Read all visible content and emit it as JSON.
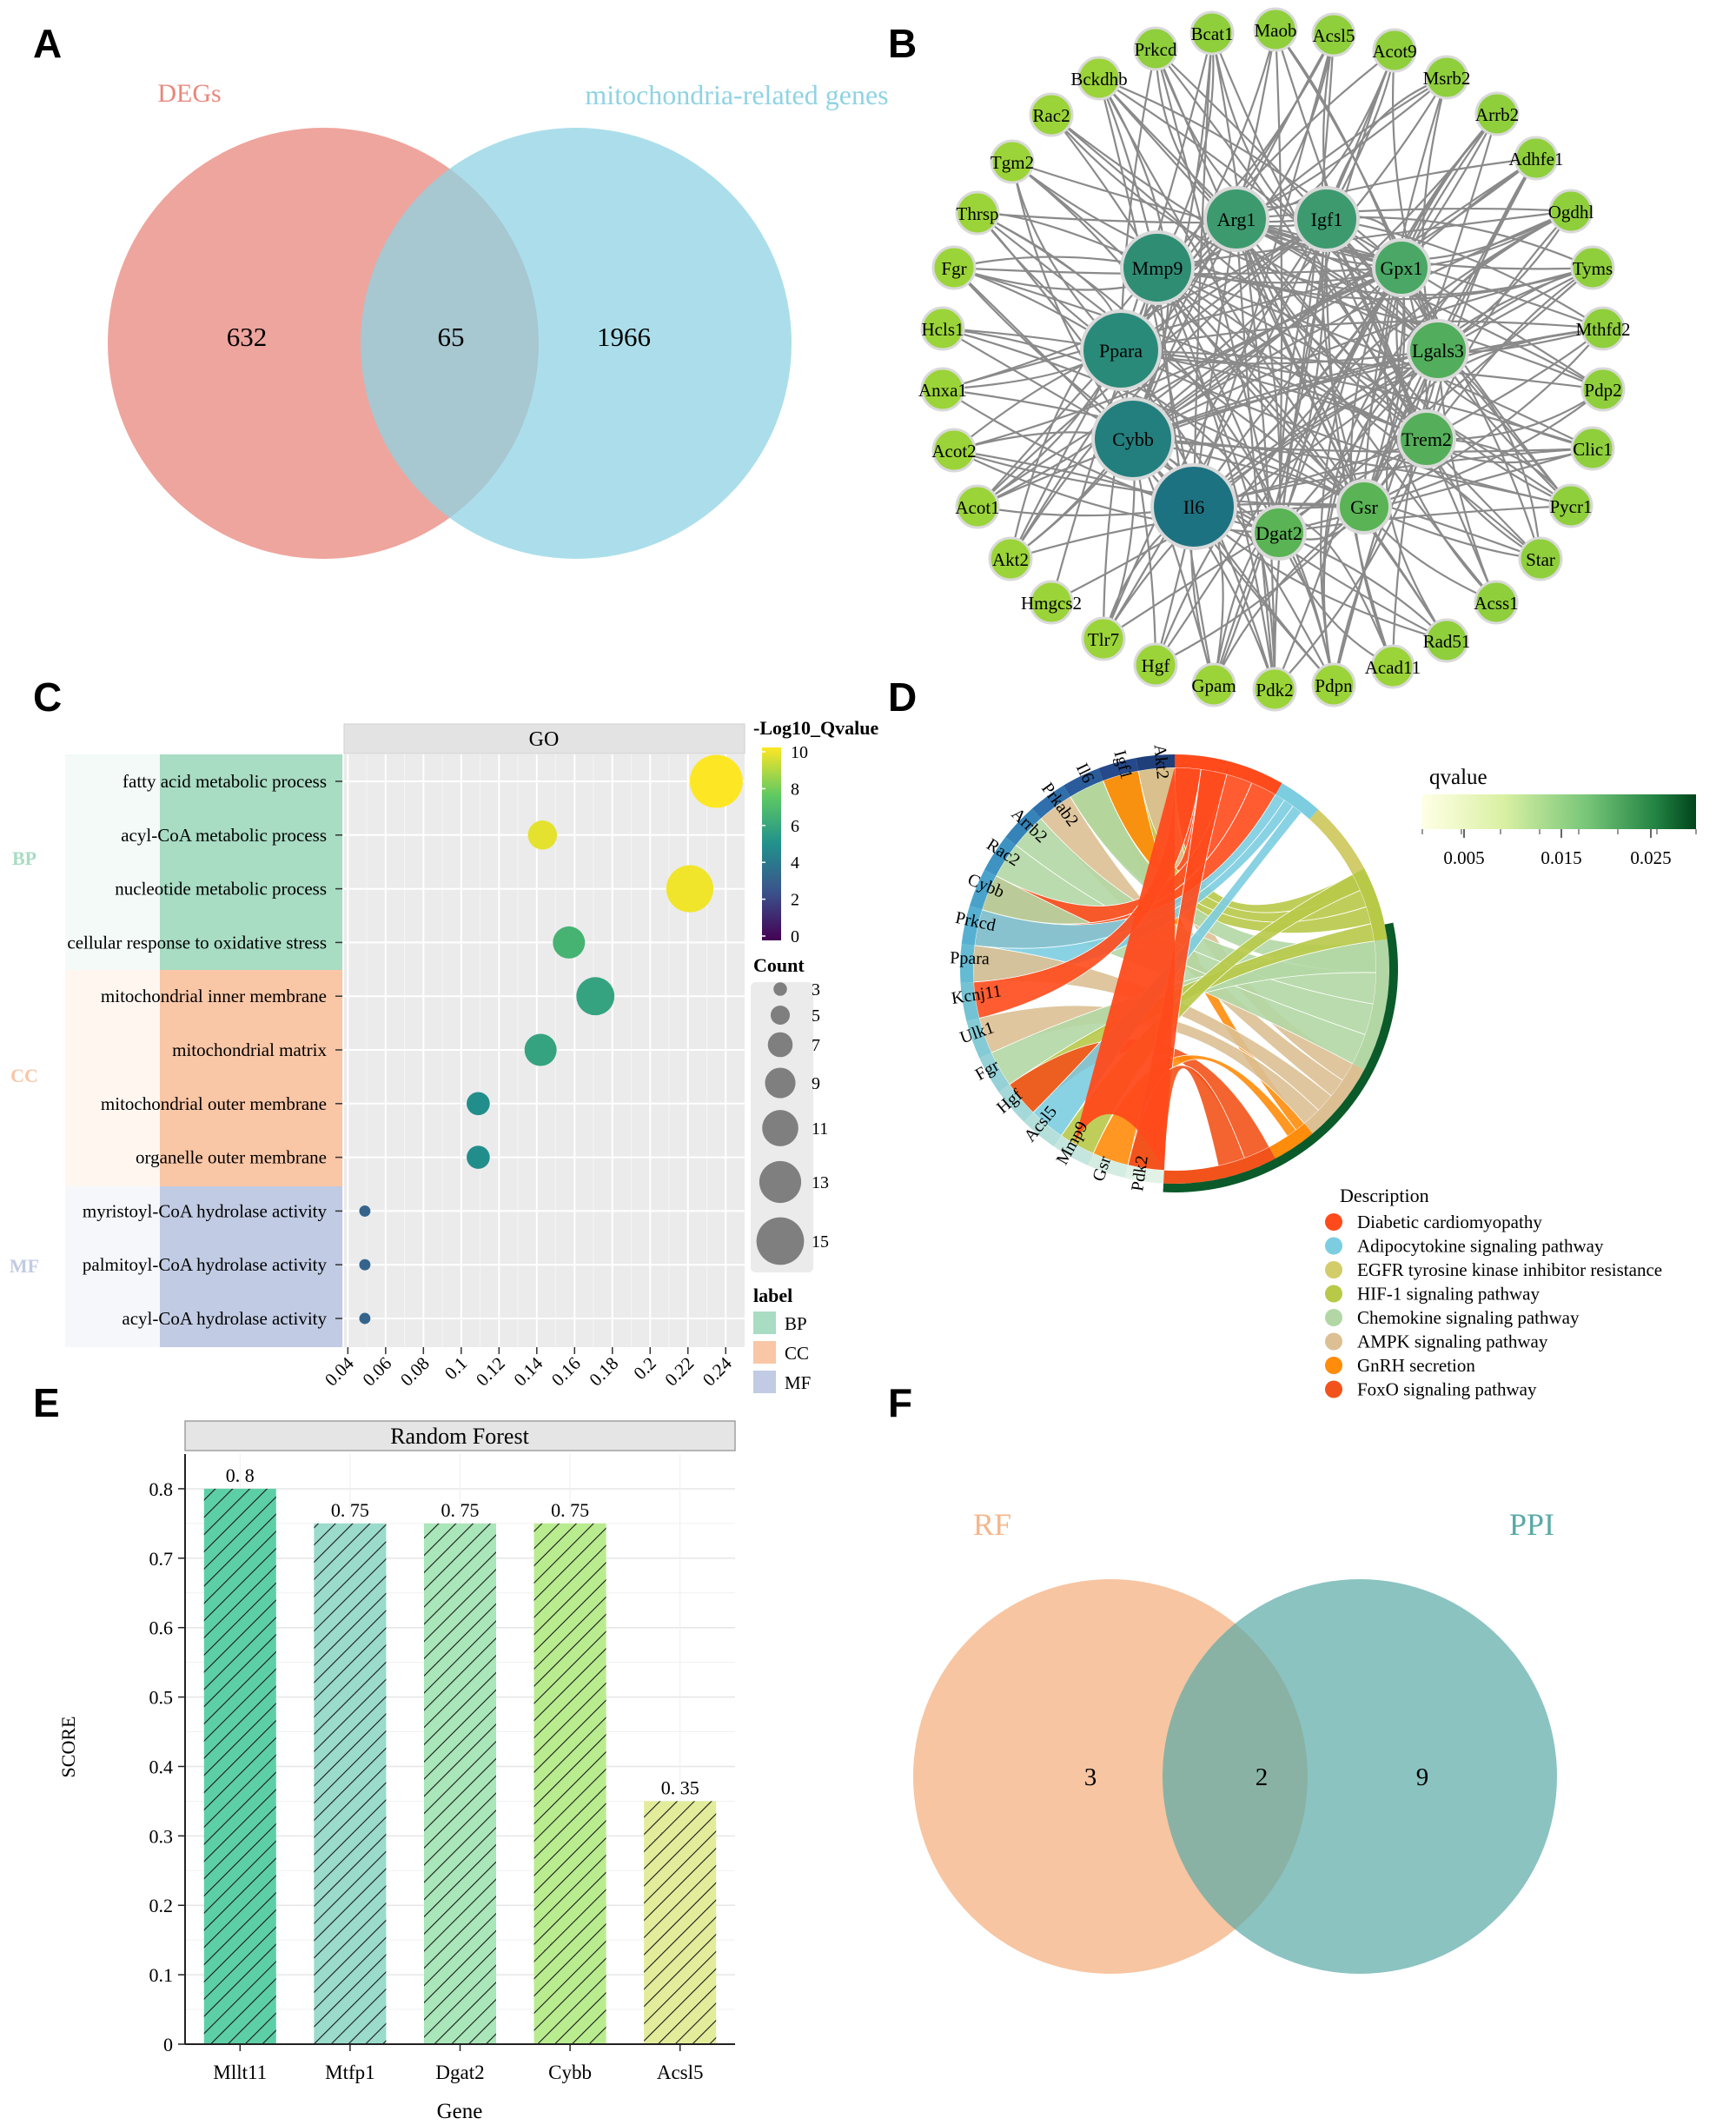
{
  "panels": {
    "A": {
      "letter": "A"
    },
    "B": {
      "letter": "B"
    },
    "C": {
      "letter": "C"
    },
    "D": {
      "letter": "D"
    },
    "E": {
      "letter": "E"
    },
    "F": {
      "letter": "F"
    }
  },
  "colors": {
    "deg": "#e8877c",
    "mito": "#8fd3e3",
    "rf": "#f5b68a",
    "ppi": "#5aa9a6",
    "bp": "#a8dcc3",
    "cc": "#f9c6a6",
    "mf": "#c1cbe3"
  },
  "chart_data": [
    {
      "panel": "A",
      "type": "venn",
      "sets": [
        {
          "name": "DEGs",
          "only": 632
        },
        {
          "name": "mitochondria-related genes",
          "only": 1966
        }
      ],
      "intersection": 65
    },
    {
      "panel": "B",
      "type": "network",
      "hubs": [
        "Arg1",
        "Igf1",
        "Mmp9",
        "Gpx1",
        "Ppara",
        "Lgals3",
        "Cybb",
        "Trem2",
        "Il6",
        "Dgat2",
        "Gsr"
      ],
      "ring": [
        "Prkcd",
        "Bcat1",
        "Maob",
        "Acsl5",
        "Acot9",
        "Msrb2",
        "Arrb2",
        "Adhfe1",
        "Ogdhl",
        "Tyms",
        "Mthfd2",
        "Pdp2",
        "Clic1",
        "Pycr1",
        "Star",
        "Acss1",
        "Rad51",
        "Acad11",
        "Pdpn",
        "Pdk2",
        "Gpam",
        "Hgf",
        "Tlr7",
        "Hmgcs2",
        "Akt2",
        "Acot1",
        "Acot2",
        "Anxa1",
        "Hcls1",
        "Fgr",
        "Thrsp",
        "Tgm2",
        "Rac2",
        "Bckdhb"
      ]
    },
    {
      "panel": "C",
      "type": "scatter",
      "title": "GO",
      "terms": [
        "fatty acid metabolic process",
        "acyl-CoA metabolic process",
        "nucleotide metabolic process",
        "cellular response to oxidative stress",
        "mitochondrial inner membrane",
        "mitochondrial matrix",
        "mitochondrial outer membrane",
        "organelle outer membrane",
        "myristoyl-CoA hydrolase activity",
        "palmitoyl-CoA hydrolase activity",
        "acyl-CoA hydrolase activity"
      ],
      "categories": [
        "BP",
        "BP",
        "BP",
        "BP",
        "CC",
        "CC",
        "CC",
        "CC",
        "MF",
        "MF",
        "MF"
      ],
      "x": [
        0.235,
        0.143,
        0.221,
        0.157,
        0.171,
        0.142,
        0.109,
        0.109,
        0.049,
        0.049,
        0.049
      ],
      "count": [
        16,
        8,
        14,
        9,
        11,
        9,
        6,
        6,
        2,
        2,
        2
      ],
      "neg_log10_q": [
        10,
        9.6,
        9.8,
        6.5,
        5.8,
        5.8,
        4.9,
        4.9,
        3.2,
        3.2,
        3.2
      ],
      "xticks": [
        "0.04",
        "0.06",
        "0.08",
        "0.1",
        "0.12",
        "0.14",
        "0.16",
        "0.18",
        "0.2",
        "0.22",
        "0.24"
      ],
      "xlim": [
        0.038,
        0.25
      ],
      "color_legend": {
        "title": "-Log10_Qvalue",
        "ticks": [
          "10",
          "8",
          "6",
          "4",
          "2",
          "0"
        ]
      },
      "size_legend": {
        "title": "Count",
        "values": [
          "3",
          "5",
          "7",
          "9",
          "11",
          "13",
          "15"
        ]
      },
      "label_legend": {
        "title": "label",
        "items": [
          "BP",
          "CC",
          "MF"
        ]
      }
    },
    {
      "panel": "D",
      "type": "chord",
      "genes": [
        "Akt2",
        "Igf1",
        "Il6",
        "Prkab2",
        "Arrb2",
        "Rac2",
        "Cybb",
        "Prkcd",
        "Ppara",
        "Kcnj11",
        "Ulk1",
        "Fgr",
        "Hgf",
        "Acsl5",
        "Mmp9",
        "Gsr",
        "Pdk2"
      ],
      "pathways": [
        "Diabetic cardiomyopathy",
        "Adipocytokine signaling pathway",
        "EGFR tyrosine kinase inhibitor resistance",
        "HIF-1 signaling pathway",
        "Chemokine signaling pathway",
        "AMPK signaling pathway",
        "GnRH secretion",
        "FoxO signaling pathway"
      ],
      "pathway_colors": [
        "#ff4a1c",
        "#7ccde0",
        "#d2cc6a",
        "#b8c948",
        "#b2d7a4",
        "#dcc094",
        "#ff8c0a",
        "#f2531b"
      ],
      "qvalue_legend": {
        "title": "qvalue",
        "ticks": [
          "0.005",
          "0.015",
          "0.025"
        ]
      },
      "legend_title": "Description"
    },
    {
      "panel": "E",
      "type": "bar",
      "title": "Random Forest",
      "categories": [
        "Mllt11",
        "Mtfp1",
        "Dgat2",
        "Cybb",
        "Acsl5"
      ],
      "values": [
        0.8,
        0.75,
        0.75,
        0.75,
        0.35
      ],
      "value_labels": [
        "0. 8",
        "0. 75",
        "0. 75",
        "0. 75",
        "0. 35"
      ],
      "colors": [
        "#5dcfa7",
        "#9adbcb",
        "#a9e6b9",
        "#b9ec8f",
        "#e3ec9b"
      ],
      "xlabel": "Gene",
      "ylabel": "SCORE",
      "ylim": [
        0,
        0.85
      ],
      "yticks": [
        "0",
        "0.1",
        "0.2",
        "0.3",
        "0.4",
        "0.5",
        "0.6",
        "0.7",
        "0.8"
      ]
    },
    {
      "panel": "F",
      "type": "venn",
      "sets": [
        {
          "name": "RF",
          "only": 3
        },
        {
          "name": "PPI",
          "only": 9
        }
      ],
      "intersection": 2
    }
  ]
}
